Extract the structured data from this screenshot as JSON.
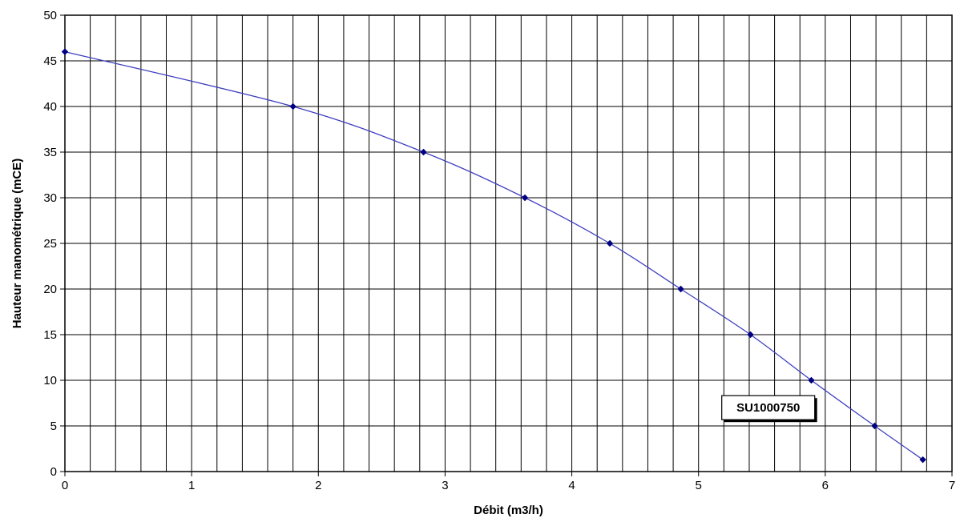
{
  "chart_data": {
    "type": "line",
    "title": "",
    "xlabel": "Débit (m3/h)",
    "ylabel": "Hauteur manométrique (mCE)",
    "xlim": [
      0,
      7
    ],
    "ylim": [
      0,
      50
    ],
    "x_ticks": [
      0,
      1,
      2,
      3,
      4,
      5,
      6,
      7
    ],
    "y_ticks": [
      0,
      5,
      10,
      15,
      20,
      25,
      30,
      35,
      40,
      45,
      50
    ],
    "x_minor_step": 0.2,
    "grid": true,
    "legend": "none",
    "series": [
      {
        "color": "#4040c0",
        "marker_color": "#000080",
        "marker": "diamond",
        "x": [
          0,
          1.8,
          2.83,
          3.63,
          4.3,
          4.86,
          5.41,
          5.89,
          6.39,
          6.77
        ],
        "y": [
          46,
          40,
          35,
          30,
          25,
          20,
          15,
          10,
          5,
          1.3
        ]
      }
    ],
    "annotations": [
      {
        "text": "SU1000750",
        "x": 5.55,
        "y": 7
      }
    ]
  }
}
